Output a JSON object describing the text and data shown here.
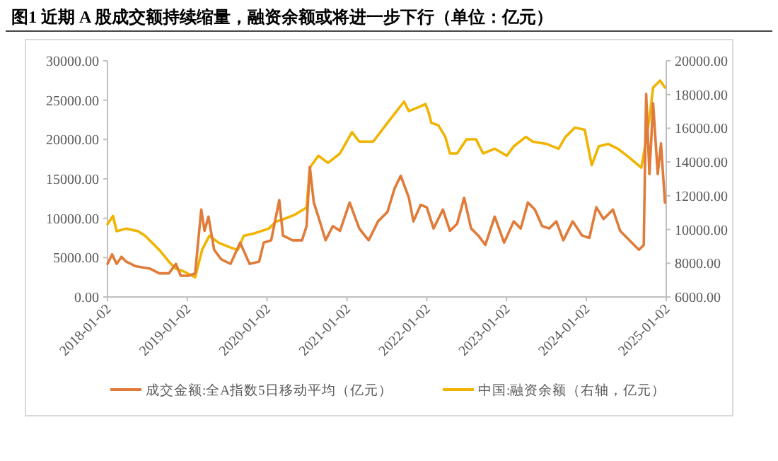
{
  "chart_data": {
    "type": "line",
    "title": "图1  近期 A 股成交额持续缩量，融资余额或将进一步下行（单位：亿元）",
    "xlim": [
      "2018-01-02",
      "2025-01-02"
    ],
    "xticks": [
      "2018-01-02",
      "2019-01-02",
      "2020-01-02",
      "2021-01-02",
      "2022-01-02",
      "2023-01-02",
      "2024-01-02",
      "2025-01-02"
    ],
    "ylim": [
      0,
      30000
    ],
    "yticks": [
      {
        "value": 0,
        "label": "0.00"
      },
      {
        "value": 5000,
        "label": "5000.00"
      },
      {
        "value": 10000,
        "label": "10000.00"
      },
      {
        "value": 15000,
        "label": "15000.00"
      },
      {
        "value": 20000,
        "label": "20000.00"
      },
      {
        "value": 25000,
        "label": "25000.00"
      },
      {
        "value": 30000,
        "label": "30000.00"
      }
    ],
    "y2lim": [
      6000,
      20000
    ],
    "y2ticks": [
      {
        "value": 6000,
        "label": "6000.00"
      },
      {
        "value": 8000,
        "label": "8000.00"
      },
      {
        "value": 10000,
        "label": "10000.00"
      },
      {
        "value": 12000,
        "label": "12000.00"
      },
      {
        "value": 14000,
        "label": "14000.00"
      },
      {
        "value": 16000,
        "label": "16000.00"
      },
      {
        "value": 18000,
        "label": "18000.00"
      },
      {
        "value": 20000,
        "label": "20000.00"
      }
    ],
    "legend": "bottom",
    "grid": false,
    "marker": "none",
    "line_style": "solid",
    "series": [
      {
        "name": "成交金额:全A指数5日移动平均（亿元）",
        "color": "#e07b39",
        "axis": "y",
        "x": [
          "2018-01-02",
          "2018-01-23",
          "2018-02-13",
          "2018-03-07",
          "2018-03-28",
          "2018-05-11",
          "2018-07-15",
          "2018-08-27",
          "2018-10-10",
          "2018-11-11",
          "2018-12-03",
          "2019-01-06",
          "2019-02-07",
          "2019-03-07",
          "2019-03-22",
          "2019-04-09",
          "2019-05-05",
          "2019-06-06",
          "2019-07-19",
          "2019-09-01",
          "2019-10-14",
          "2019-11-27",
          "2019-12-18",
          "2020-01-21",
          "2020-02-27",
          "2020-03-15",
          "2020-04-28",
          "2020-06-10",
          "2020-07-01",
          "2020-07-16",
          "2020-08-03",
          "2020-08-24",
          "2020-09-26",
          "2020-10-29",
          "2020-12-01",
          "2021-01-14",
          "2021-02-27",
          "2021-04-11",
          "2021-05-24",
          "2021-07-06",
          "2021-08-08",
          "2021-09-05",
          "2021-10-12",
          "2021-11-02",
          "2021-12-05",
          "2022-01-02",
          "2022-02-02",
          "2022-03-17",
          "2022-04-18",
          "2022-05-21",
          "2022-06-22",
          "2022-07-24",
          "2022-08-26",
          "2022-09-27",
          "2022-11-09",
          "2022-12-22",
          "2023-02-04",
          "2023-03-08",
          "2023-04-10",
          "2023-05-12",
          "2023-06-14",
          "2023-07-16",
          "2023-08-18",
          "2023-09-19",
          "2023-11-01",
          "2023-12-14",
          "2024-01-16",
          "2024-02-17",
          "2024-03-21",
          "2024-05-03",
          "2024-06-05",
          "2024-07-07",
          "2024-08-08",
          "2024-08-30",
          "2024-09-21",
          "2024-10-02",
          "2024-10-17",
          "2024-11-03",
          "2024-11-24",
          "2024-12-09",
          "2024-12-27"
        ],
        "values": [
          4200,
          5400,
          4200,
          5100,
          4500,
          3900,
          3600,
          3000,
          3000,
          4200,
          2700,
          2700,
          3000,
          11100,
          8400,
          10200,
          6000,
          4800,
          4200,
          6900,
          4200,
          4500,
          6900,
          7200,
          12300,
          7800,
          7200,
          7200,
          9000,
          16500,
          12000,
          10200,
          7200,
          9000,
          8400,
          12000,
          8700,
          7200,
          9600,
          10800,
          13800,
          15400,
          12600,
          9600,
          11700,
          11400,
          8700,
          11100,
          8400,
          9300,
          12600,
          8700,
          7800,
          6600,
          10200,
          6900,
          9600,
          8700,
          12000,
          11100,
          9000,
          8700,
          9600,
          7200,
          9600,
          7800,
          7500,
          11400,
          9900,
          11100,
          8400,
          7500,
          6600,
          6000,
          6600,
          25800,
          15600,
          24600,
          15600,
          19500,
          12000
        ]
      },
      {
        "name": "中国:融资余额（右轴，亿元）",
        "color": "#f0b400",
        "axis": "y2",
        "x": [
          "2018-01-02",
          "2018-01-27",
          "2018-02-13",
          "2018-03-28",
          "2018-05-22",
          "2018-06-23",
          "2018-08-27",
          "2018-10-10",
          "2018-11-11",
          "2018-12-14",
          "2019-02-07",
          "2019-03-11",
          "2019-04-13",
          "2019-05-26",
          "2019-07-19",
          "2019-08-21",
          "2019-09-18",
          "2019-11-05",
          "2020-01-10",
          "2020-02-11",
          "2020-03-15",
          "2020-05-09",
          "2020-07-01",
          "2020-07-16",
          "2020-08-24",
          "2020-10-07",
          "2020-12-01",
          "2021-01-25",
          "2021-02-27",
          "2021-05-02",
          "2021-07-06",
          "2021-09-20",
          "2021-10-12",
          "2021-12-05",
          "2021-12-27",
          "2022-01-12",
          "2022-01-23",
          "2022-02-24",
          "2022-03-28",
          "2022-04-18",
          "2022-05-21",
          "2022-07-03",
          "2022-08-15",
          "2022-09-17",
          "2022-11-09",
          "2023-01-03",
          "2023-02-04",
          "2023-03-31",
          "2023-05-02",
          "2023-07-05",
          "2023-08-28",
          "2023-09-29",
          "2023-11-11",
          "2023-12-26",
          "2024-01-27",
          "2024-02-28",
          "2024-04-12",
          "2024-05-25",
          "2024-07-07",
          "2024-09-10",
          "2024-09-27",
          "2024-10-17",
          "2024-11-03",
          "2024-12-05",
          "2024-12-27"
        ],
        "values": [
          10320,
          10800,
          9900,
          10050,
          9900,
          9630,
          8790,
          8090,
          7670,
          7530,
          7170,
          8790,
          9630,
          9210,
          8930,
          8790,
          9630,
          9770,
          10050,
          10460,
          10600,
          10880,
          11300,
          13670,
          14370,
          13950,
          14510,
          15770,
          15210,
          15210,
          16320,
          17580,
          17020,
          17300,
          17440,
          16880,
          16320,
          16180,
          15490,
          14510,
          14510,
          15350,
          15350,
          14510,
          14790,
          14370,
          14930,
          15490,
          15210,
          15070,
          14790,
          15490,
          16040,
          15910,
          13810,
          14930,
          15070,
          14790,
          14370,
          13670,
          14930,
          16600,
          18420,
          18830,
          18420
        ]
      }
    ]
  }
}
